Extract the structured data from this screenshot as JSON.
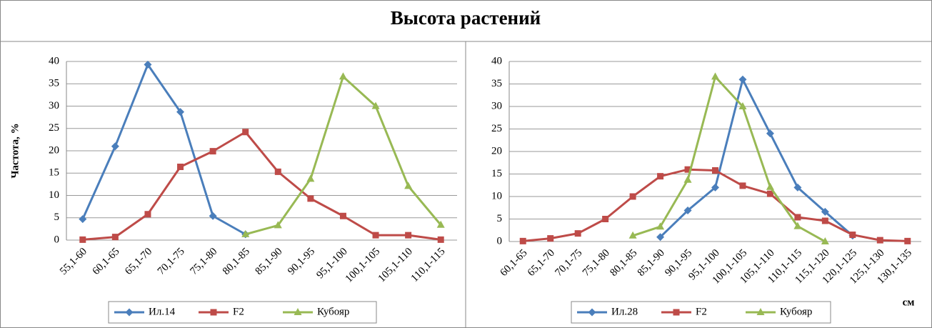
{
  "title": "Высота растений",
  "chart_data": [
    {
      "type": "line",
      "y_label": "Частота, %",
      "categories": [
        "55,1-60",
        "60,1-65",
        "65,1-70",
        "70,1-75",
        "75,1-80",
        "80,1-85",
        "85,1-90",
        "90,1-95",
        "95,1-100",
        "100,1-105",
        "105,1-110",
        "110,1-115"
      ],
      "ylim": [
        0,
        40
      ],
      "yticks": [
        0,
        5,
        10,
        15,
        20,
        25,
        30,
        35,
        40
      ],
      "grid": true,
      "legend": "bottom",
      "series": [
        {
          "name": "Ил.14",
          "color": "#4a7ebb",
          "marker": "diamond",
          "values": [
            4.7,
            21,
            39.3,
            28.7,
            5.4,
            1.3,
            null,
            null,
            null,
            null,
            null,
            null
          ]
        },
        {
          "name": "F2",
          "color": "#be4b48",
          "marker": "square",
          "values": [
            0.1,
            0.7,
            5.8,
            16.4,
            19.9,
            24.2,
            15.3,
            9.3,
            5.4,
            1.1,
            1.1,
            0.1
          ]
        },
        {
          "name": "Кубояр",
          "color": "#98b954",
          "marker": "triangle",
          "values": [
            null,
            null,
            null,
            null,
            null,
            1.3,
            3.3,
            13.7,
            36.6,
            30,
            12.1,
            3.4
          ]
        }
      ]
    },
    {
      "type": "line",
      "x_label": "см",
      "categories": [
        "60,1-65",
        "65,1-70",
        "70,1-75",
        "75,1-80",
        "80,1-85",
        "85,1-90",
        "90,1-95",
        "95,1-100",
        "100,1-105",
        "105,1-110",
        "110,1-115",
        "115,1-120",
        "120,1-125",
        "125,1-130",
        "130,1-135"
      ],
      "ylim": [
        0,
        40
      ],
      "yticks": [
        0,
        5,
        10,
        15,
        20,
        25,
        30,
        35,
        40
      ],
      "grid": true,
      "legend": "bottom",
      "series": [
        {
          "name": "Ил.28",
          "color": "#4a7ebb",
          "marker": "diamond",
          "values": [
            null,
            null,
            null,
            null,
            null,
            1,
            6.9,
            12,
            36,
            24,
            12,
            6.6,
            1.3,
            null,
            null
          ]
        },
        {
          "name": "F2",
          "color": "#be4b48",
          "marker": "square",
          "values": [
            0.1,
            0.7,
            1.8,
            5,
            10,
            14.5,
            16,
            15.8,
            12.4,
            10.6,
            5.4,
            4.6,
            1.5,
            0.3,
            0.1
          ]
        },
        {
          "name": "Кубояр",
          "color": "#98b954",
          "marker": "triangle",
          "values": [
            null,
            null,
            null,
            null,
            1.3,
            3.3,
            13.7,
            36.6,
            30,
            12.1,
            3.4,
            0,
            null,
            null,
            null
          ]
        }
      ]
    }
  ]
}
